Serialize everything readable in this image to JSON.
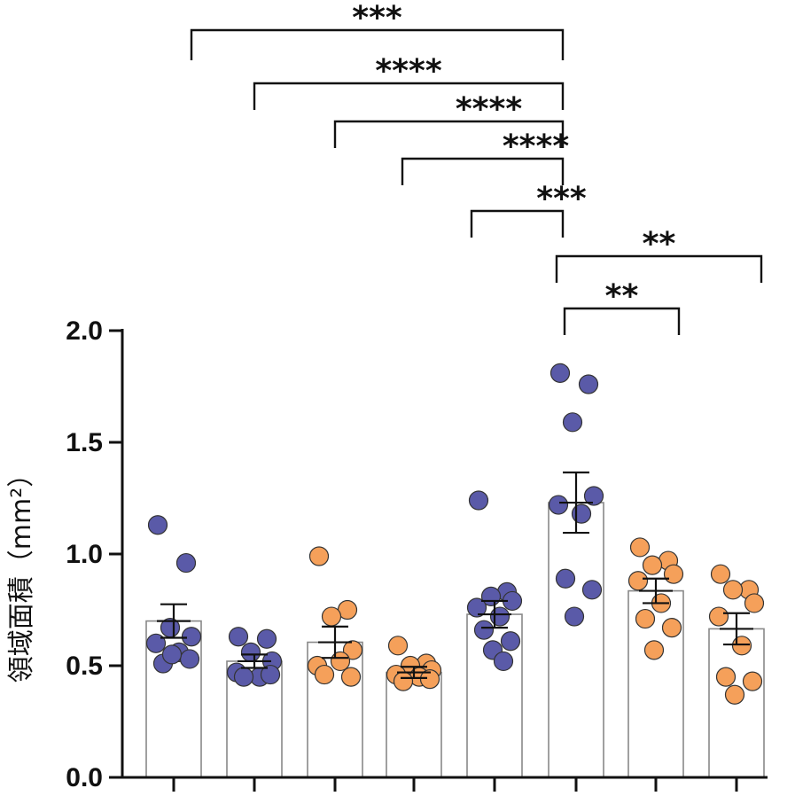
{
  "chart_data": {
    "type": "bar",
    "ylabel": "領域面積（mm²）",
    "ylim": [
      0,
      2.0
    ],
    "y_ticks": [
      {
        "value": 0.0,
        "label": "0.0"
      },
      {
        "value": 0.5,
        "label": "0.5"
      },
      {
        "value": 1.0,
        "label": "1.0"
      },
      {
        "value": 1.5,
        "label": "1.5"
      },
      {
        "value": 2.0,
        "label": "2.0"
      }
    ],
    "colors": {
      "blue": "#5a5aa8",
      "orange": "#f5a05a",
      "bar_fill": "#ffffff",
      "bar_stroke": "#888888",
      "axis": "#111111"
    },
    "groups": [
      {
        "mean": 0.7,
        "sem": 0.075,
        "color": "blue",
        "points": [
          1.13,
          0.96,
          0.67,
          0.63,
          0.6,
          0.56,
          0.51,
          0.53,
          0.55
        ]
      },
      {
        "mean": 0.52,
        "sem": 0.03,
        "color": "blue",
        "points": [
          0.63,
          0.62,
          0.56,
          0.52,
          0.47,
          0.45,
          0.45,
          0.46
        ]
      },
      {
        "mean": 0.605,
        "sem": 0.07,
        "color": "orange",
        "points": [
          0.99,
          0.75,
          0.72,
          0.57,
          0.5,
          0.52,
          0.46,
          0.45
        ]
      },
      {
        "mean": 0.47,
        "sem": 0.025,
        "color": "orange",
        "points": [
          0.59,
          0.51,
          0.5,
          0.48,
          0.46,
          0.45,
          0.43,
          0.44
        ]
      },
      {
        "mean": 0.73,
        "sem": 0.06,
        "color": "blue",
        "points": [
          1.24,
          0.83,
          0.81,
          0.79,
          0.76,
          0.72,
          0.66,
          0.61,
          0.57,
          0.52
        ]
      },
      {
        "mean": 1.23,
        "sem": 0.135,
        "color": "blue",
        "points": [
          1.81,
          1.76,
          1.59,
          1.26,
          1.22,
          1.18,
          0.89,
          0.84,
          0.72
        ]
      },
      {
        "mean": 0.835,
        "sem": 0.055,
        "color": "orange",
        "points": [
          1.03,
          0.97,
          0.95,
          0.91,
          0.88,
          0.78,
          0.71,
          0.67,
          0.57
        ]
      },
      {
        "mean": 0.665,
        "sem": 0.07,
        "color": "orange",
        "points": [
          0.91,
          0.84,
          0.84,
          0.78,
          0.72,
          0.59,
          0.45,
          0.43,
          0.37
        ]
      }
    ],
    "comparisons": [
      {
        "from": 0,
        "to": 5,
        "label": "***"
      },
      {
        "from": 1,
        "to": 5,
        "label": "****"
      },
      {
        "from": 2,
        "to": 5,
        "label": "****"
      },
      {
        "from": 3,
        "to": 5,
        "label": "****"
      },
      {
        "from": 4,
        "to": 5,
        "label": "***"
      },
      {
        "from": 5,
        "to": 7,
        "label": "**"
      },
      {
        "from": 5,
        "to": 6,
        "label": "**"
      }
    ]
  }
}
